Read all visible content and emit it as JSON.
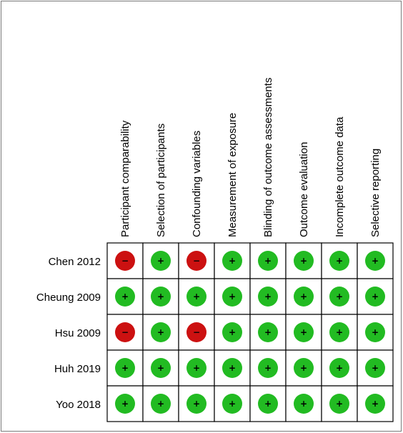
{
  "chart_data": {
    "type": "table",
    "title": "",
    "domains": [
      "Participant comparability",
      "Selection of participants",
      "Confounding variables",
      "Measurement of exposure",
      "Blinding of outcome assessments",
      "Outcome evaluation",
      "Incomplete outcome data",
      "Selective reporting"
    ],
    "studies": [
      "Chen 2012",
      "Cheung 2009",
      "Hsu 2009",
      "Huh 2019",
      "Yoo 2018"
    ],
    "judgements": [
      [
        "high",
        "low",
        "high",
        "low",
        "low",
        "low",
        "low",
        "low"
      ],
      [
        "low",
        "low",
        "low",
        "low",
        "low",
        "low",
        "low",
        "low"
      ],
      [
        "high",
        "low",
        "high",
        "low",
        "low",
        "low",
        "low",
        "low"
      ],
      [
        "low",
        "low",
        "low",
        "low",
        "low",
        "low",
        "low",
        "low"
      ],
      [
        "low",
        "low",
        "low",
        "low",
        "low",
        "low",
        "low",
        "low"
      ]
    ],
    "symbols": {
      "low": "+",
      "high": "−"
    },
    "colors": {
      "low": "#22bb22",
      "high": "#cc1111"
    }
  }
}
